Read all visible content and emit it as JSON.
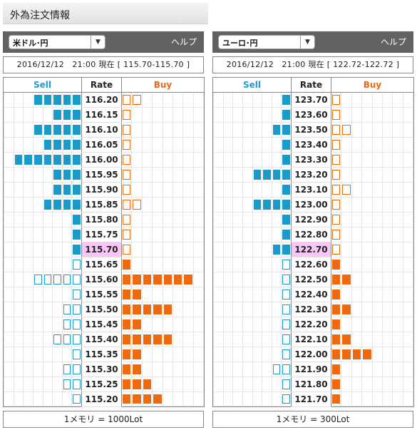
{
  "page_title": "外為注文情報",
  "panels": [
    {
      "pair": "米ドル･円",
      "help": "ヘルプ",
      "date_line": "2016/12/12　21:00 現在 [ 115.70-115.70 ]",
      "headers": {
        "sell": "Sell",
        "rate": "Rate",
        "buy": "Buy"
      },
      "footer": "1メモリ = 1000Lot",
      "rows": [
        {
          "rate": "116.20",
          "sell": 5,
          "sell_style": "filled",
          "buy": 2,
          "buy_style": "outline"
        },
        {
          "rate": "116.15",
          "sell": 3,
          "sell_style": "filled",
          "buy": 1,
          "buy_style": "outline"
        },
        {
          "rate": "116.10",
          "sell": 5,
          "sell_style": "filled",
          "buy": 1,
          "buy_style": "outline"
        },
        {
          "rate": "116.05",
          "sell": 4,
          "sell_style": "filled",
          "buy": 1,
          "buy_style": "outline"
        },
        {
          "rate": "116.00",
          "sell": 7,
          "sell_style": "filled",
          "buy": 1,
          "buy_style": "outline"
        },
        {
          "rate": "115.95",
          "sell": 3,
          "sell_style": "filled",
          "buy": 1,
          "buy_style": "outline"
        },
        {
          "rate": "115.90",
          "sell": 3,
          "sell_style": "filled",
          "buy": 1,
          "buy_style": "outline"
        },
        {
          "rate": "115.85",
          "sell": 4,
          "sell_style": "filled",
          "buy": 2,
          "buy_style": "outline"
        },
        {
          "rate": "115.80",
          "sell": 1,
          "sell_style": "filled",
          "buy": 1,
          "buy_style": "outline"
        },
        {
          "rate": "115.75",
          "sell": 1,
          "sell_style": "filled",
          "buy": 1,
          "buy_style": "outline"
        },
        {
          "rate": "115.70",
          "sell": 1,
          "sell_style": "filled",
          "buy": 1,
          "buy_style": "outline",
          "current": true
        },
        {
          "rate": "115.65",
          "sell": 1,
          "sell_style": "outline",
          "buy": 1,
          "buy_style": "filled"
        },
        {
          "rate": "115.60",
          "sell": 5,
          "sell_style": "outline",
          "buy": 7,
          "buy_style": "filled"
        },
        {
          "rate": "115.55",
          "sell": 1,
          "sell_style": "outline",
          "buy": 2,
          "buy_style": "filled"
        },
        {
          "rate": "115.50",
          "sell": 2,
          "sell_style": "outline",
          "buy": 5,
          "buy_style": "filled"
        },
        {
          "rate": "115.45",
          "sell": 2,
          "sell_style": "outline",
          "buy": 2,
          "buy_style": "filled"
        },
        {
          "rate": "115.40",
          "sell": 3,
          "sell_style": "outline",
          "buy": 5,
          "buy_style": "filled"
        },
        {
          "rate": "115.35",
          "sell": 1,
          "sell_style": "outline",
          "buy": 2,
          "buy_style": "filled"
        },
        {
          "rate": "115.30",
          "sell": 2,
          "sell_style": "outline",
          "buy": 2,
          "buy_style": "filled"
        },
        {
          "rate": "115.25",
          "sell": 2,
          "sell_style": "outline",
          "buy": 3,
          "buy_style": "filled"
        },
        {
          "rate": "115.20",
          "sell": 1,
          "sell_style": "outline",
          "buy": 4,
          "buy_style": "filled"
        }
      ]
    },
    {
      "pair": "ユーロ･円",
      "help": "ヘルプ",
      "date_line": "2016/12/12　21:00 現在 [ 122.72-122.72 ]",
      "headers": {
        "sell": "Sell",
        "rate": "Rate",
        "buy": "Buy"
      },
      "footer": "1メモリ = 300Lot",
      "rows": [
        {
          "rate": "123.70",
          "sell": 1,
          "sell_style": "filled",
          "buy": 1,
          "buy_style": "outline"
        },
        {
          "rate": "123.60",
          "sell": 1,
          "sell_style": "filled",
          "buy": 1,
          "buy_style": "outline"
        },
        {
          "rate": "123.50",
          "sell": 2,
          "sell_style": "filled",
          "buy": 2,
          "buy_style": "outline"
        },
        {
          "rate": "123.40",
          "sell": 1,
          "sell_style": "filled",
          "buy": 1,
          "buy_style": "outline"
        },
        {
          "rate": "123.30",
          "sell": 1,
          "sell_style": "filled",
          "buy": 1,
          "buy_style": "outline"
        },
        {
          "rate": "123.20",
          "sell": 4,
          "sell_style": "filled",
          "buy": 1,
          "buy_style": "outline"
        },
        {
          "rate": "123.10",
          "sell": 1,
          "sell_style": "filled",
          "buy": 2,
          "buy_style": "outline"
        },
        {
          "rate": "123.00",
          "sell": 4,
          "sell_style": "filled",
          "buy": 1,
          "buy_style": "outline"
        },
        {
          "rate": "122.90",
          "sell": 1,
          "sell_style": "filled",
          "buy": 1,
          "buy_style": "outline"
        },
        {
          "rate": "122.80",
          "sell": 1,
          "sell_style": "filled",
          "buy": 1,
          "buy_style": "outline"
        },
        {
          "rate": "122.70",
          "sell": 2,
          "sell_style": "filled",
          "buy": 1,
          "buy_style": "outline",
          "current": true
        },
        {
          "rate": "122.60",
          "sell": 1,
          "sell_style": "outline",
          "buy": 1,
          "buy_style": "filled"
        },
        {
          "rate": "122.50",
          "sell": 1,
          "sell_style": "outline",
          "buy": 2,
          "buy_style": "filled"
        },
        {
          "rate": "122.40",
          "sell": 1,
          "sell_style": "outline",
          "buy": 1,
          "buy_style": "filled"
        },
        {
          "rate": "122.30",
          "sell": 1,
          "sell_style": "outline",
          "buy": 2,
          "buy_style": "filled"
        },
        {
          "rate": "122.20",
          "sell": 1,
          "sell_style": "outline",
          "buy": 1,
          "buy_style": "filled"
        },
        {
          "rate": "122.10",
          "sell": 1,
          "sell_style": "outline",
          "buy": 2,
          "buy_style": "filled"
        },
        {
          "rate": "122.00",
          "sell": 1,
          "sell_style": "outline",
          "buy": 4,
          "buy_style": "filled"
        },
        {
          "rate": "121.90",
          "sell": 2,
          "sell_style": "outline",
          "buy": 1,
          "buy_style": "filled"
        },
        {
          "rate": "121.80",
          "sell": 1,
          "sell_style": "outline",
          "buy": 1,
          "buy_style": "filled"
        },
        {
          "rate": "121.70",
          "sell": 1,
          "sell_style": "outline",
          "buy": 1,
          "buy_style": "filled"
        }
      ]
    }
  ]
}
